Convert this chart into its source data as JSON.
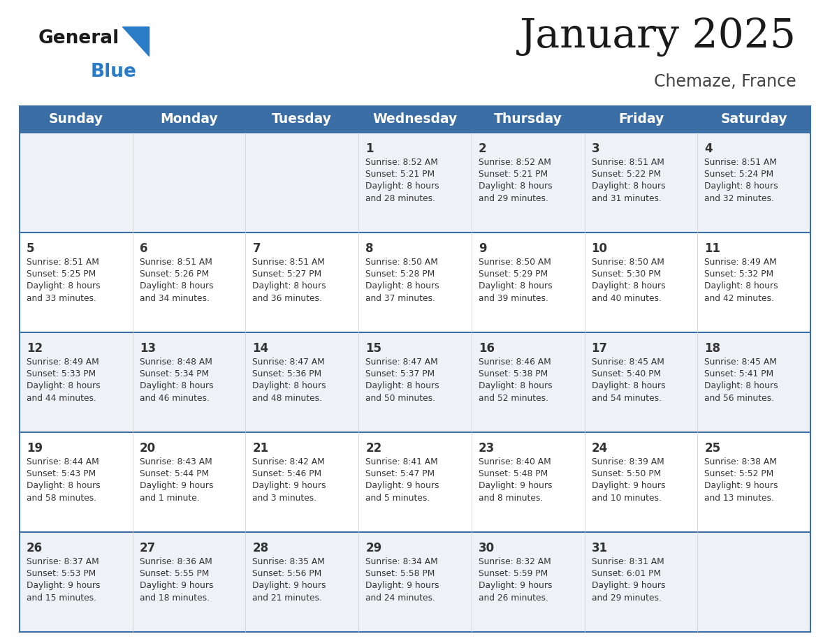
{
  "title": "January 2025",
  "subtitle": "Chemaze, France",
  "header_bg": "#3a6ea5",
  "header_text_color": "#ffffff",
  "row_bg_even": "#eef2f7",
  "row_bg_odd": "#ffffff",
  "day_names": [
    "Sunday",
    "Monday",
    "Tuesday",
    "Wednesday",
    "Thursday",
    "Friday",
    "Saturday"
  ],
  "cell_border_color": "#3a6ea5",
  "day_number_color": "#333333",
  "info_text_color": "#333333",
  "background_color": "#ffffff",
  "logo_general_color": "#1a1a1a",
  "logo_blue_color": "#2a7cc7",
  "logo_triangle_color": "#2a7cc7",
  "title_color": "#1a1a1a",
  "subtitle_color": "#444444",
  "calendar": [
    [
      {
        "day": "",
        "info": ""
      },
      {
        "day": "",
        "info": ""
      },
      {
        "day": "",
        "info": ""
      },
      {
        "day": "1",
        "info": "Sunrise: 8:52 AM\nSunset: 5:21 PM\nDaylight: 8 hours\nand 28 minutes."
      },
      {
        "day": "2",
        "info": "Sunrise: 8:52 AM\nSunset: 5:21 PM\nDaylight: 8 hours\nand 29 minutes."
      },
      {
        "day": "3",
        "info": "Sunrise: 8:51 AM\nSunset: 5:22 PM\nDaylight: 8 hours\nand 31 minutes."
      },
      {
        "day": "4",
        "info": "Sunrise: 8:51 AM\nSunset: 5:24 PM\nDaylight: 8 hours\nand 32 minutes."
      }
    ],
    [
      {
        "day": "5",
        "info": "Sunrise: 8:51 AM\nSunset: 5:25 PM\nDaylight: 8 hours\nand 33 minutes."
      },
      {
        "day": "6",
        "info": "Sunrise: 8:51 AM\nSunset: 5:26 PM\nDaylight: 8 hours\nand 34 minutes."
      },
      {
        "day": "7",
        "info": "Sunrise: 8:51 AM\nSunset: 5:27 PM\nDaylight: 8 hours\nand 36 minutes."
      },
      {
        "day": "8",
        "info": "Sunrise: 8:50 AM\nSunset: 5:28 PM\nDaylight: 8 hours\nand 37 minutes."
      },
      {
        "day": "9",
        "info": "Sunrise: 8:50 AM\nSunset: 5:29 PM\nDaylight: 8 hours\nand 39 minutes."
      },
      {
        "day": "10",
        "info": "Sunrise: 8:50 AM\nSunset: 5:30 PM\nDaylight: 8 hours\nand 40 minutes."
      },
      {
        "day": "11",
        "info": "Sunrise: 8:49 AM\nSunset: 5:32 PM\nDaylight: 8 hours\nand 42 minutes."
      }
    ],
    [
      {
        "day": "12",
        "info": "Sunrise: 8:49 AM\nSunset: 5:33 PM\nDaylight: 8 hours\nand 44 minutes."
      },
      {
        "day": "13",
        "info": "Sunrise: 8:48 AM\nSunset: 5:34 PM\nDaylight: 8 hours\nand 46 minutes."
      },
      {
        "day": "14",
        "info": "Sunrise: 8:47 AM\nSunset: 5:36 PM\nDaylight: 8 hours\nand 48 minutes."
      },
      {
        "day": "15",
        "info": "Sunrise: 8:47 AM\nSunset: 5:37 PM\nDaylight: 8 hours\nand 50 minutes."
      },
      {
        "day": "16",
        "info": "Sunrise: 8:46 AM\nSunset: 5:38 PM\nDaylight: 8 hours\nand 52 minutes."
      },
      {
        "day": "17",
        "info": "Sunrise: 8:45 AM\nSunset: 5:40 PM\nDaylight: 8 hours\nand 54 minutes."
      },
      {
        "day": "18",
        "info": "Sunrise: 8:45 AM\nSunset: 5:41 PM\nDaylight: 8 hours\nand 56 minutes."
      }
    ],
    [
      {
        "day": "19",
        "info": "Sunrise: 8:44 AM\nSunset: 5:43 PM\nDaylight: 8 hours\nand 58 minutes."
      },
      {
        "day": "20",
        "info": "Sunrise: 8:43 AM\nSunset: 5:44 PM\nDaylight: 9 hours\nand 1 minute."
      },
      {
        "day": "21",
        "info": "Sunrise: 8:42 AM\nSunset: 5:46 PM\nDaylight: 9 hours\nand 3 minutes."
      },
      {
        "day": "22",
        "info": "Sunrise: 8:41 AM\nSunset: 5:47 PM\nDaylight: 9 hours\nand 5 minutes."
      },
      {
        "day": "23",
        "info": "Sunrise: 8:40 AM\nSunset: 5:48 PM\nDaylight: 9 hours\nand 8 minutes."
      },
      {
        "day": "24",
        "info": "Sunrise: 8:39 AM\nSunset: 5:50 PM\nDaylight: 9 hours\nand 10 minutes."
      },
      {
        "day": "25",
        "info": "Sunrise: 8:38 AM\nSunset: 5:52 PM\nDaylight: 9 hours\nand 13 minutes."
      }
    ],
    [
      {
        "day": "26",
        "info": "Sunrise: 8:37 AM\nSunset: 5:53 PM\nDaylight: 9 hours\nand 15 minutes."
      },
      {
        "day": "27",
        "info": "Sunrise: 8:36 AM\nSunset: 5:55 PM\nDaylight: 9 hours\nand 18 minutes."
      },
      {
        "day": "28",
        "info": "Sunrise: 8:35 AM\nSunset: 5:56 PM\nDaylight: 9 hours\nand 21 minutes."
      },
      {
        "day": "29",
        "info": "Sunrise: 8:34 AM\nSunset: 5:58 PM\nDaylight: 9 hours\nand 24 minutes."
      },
      {
        "day": "30",
        "info": "Sunrise: 8:32 AM\nSunset: 5:59 PM\nDaylight: 9 hours\nand 26 minutes."
      },
      {
        "day": "31",
        "info": "Sunrise: 8:31 AM\nSunset: 6:01 PM\nDaylight: 9 hours\nand 29 minutes."
      },
      {
        "day": "",
        "info": ""
      }
    ]
  ]
}
